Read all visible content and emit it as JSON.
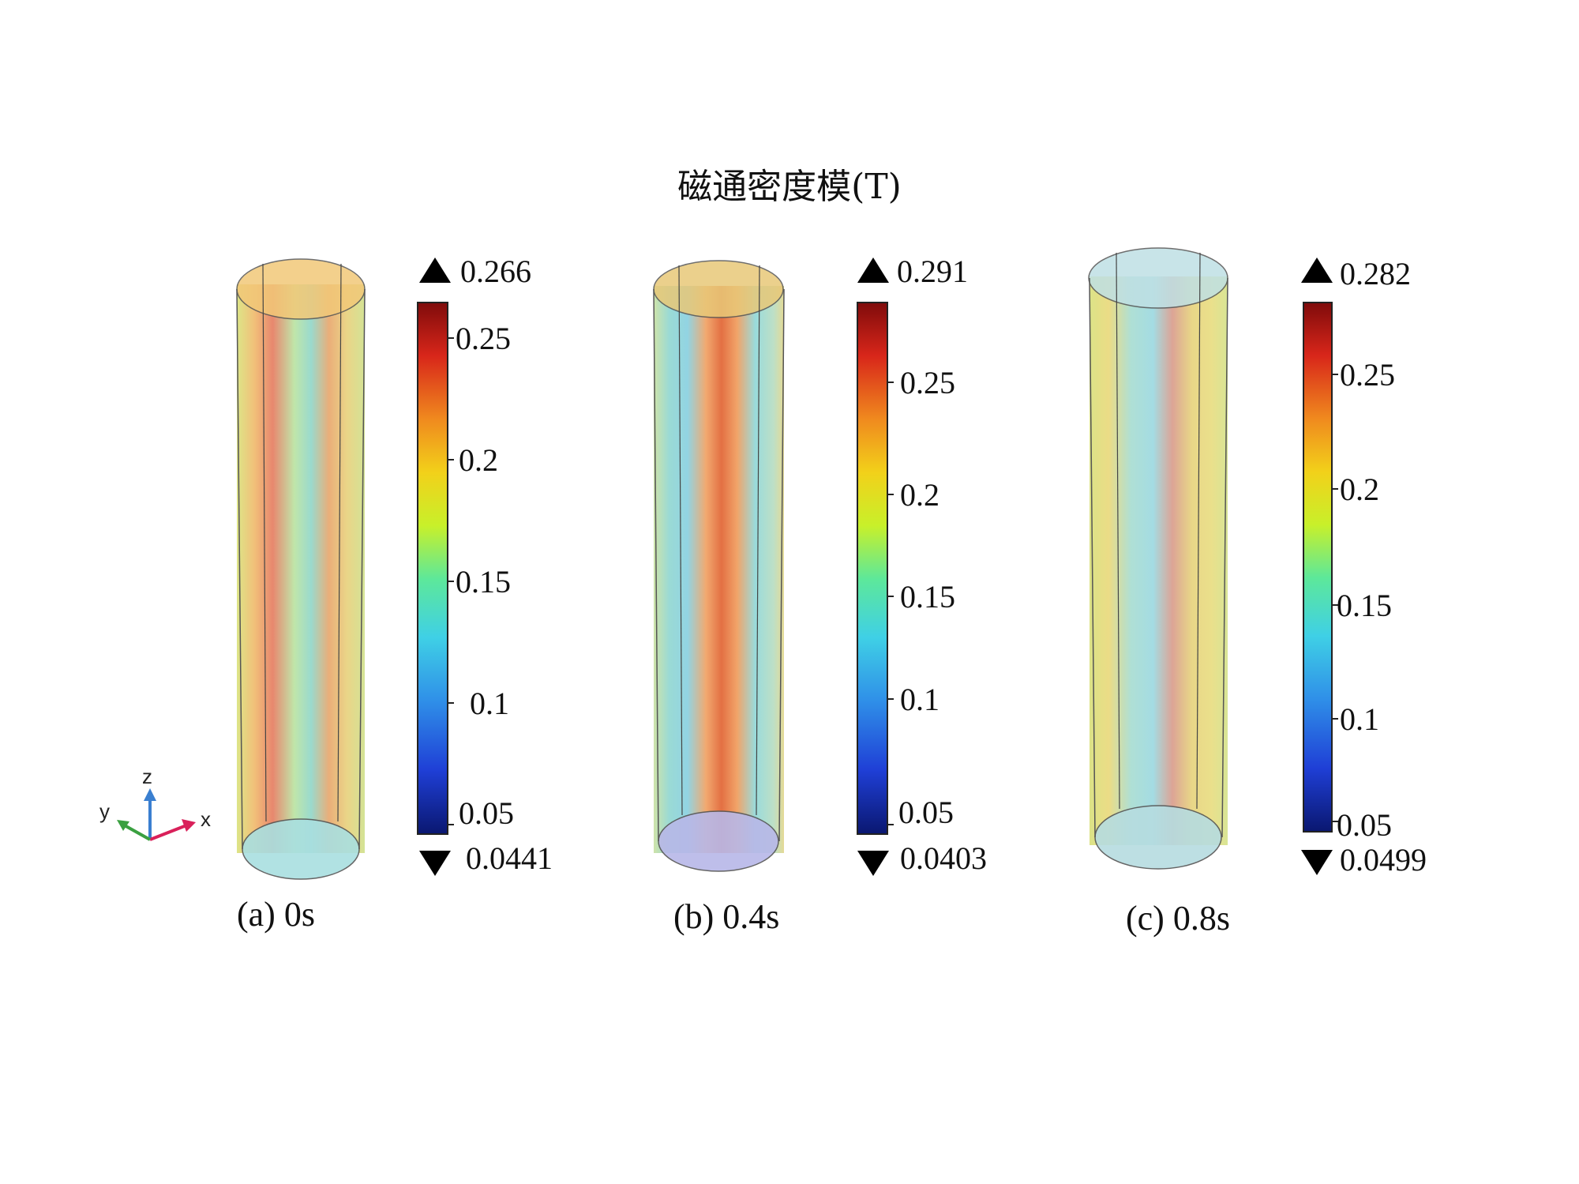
{
  "title": "磁通密度模(T)",
  "colormap": [
    "#0a1770",
    "#1f3fd6",
    "#2f8fe8",
    "#3fd0e6",
    "#5de89a",
    "#c8f02a",
    "#f2d11a",
    "#f08a1e",
    "#d8261a",
    "#7f0b0b"
  ],
  "panels": [
    {
      "caption": "(a) 0s",
      "max_label": "0.266",
      "min_label": "0.0441",
      "ticks": [
        "0.25",
        "0.2",
        "0.15",
        "0.1",
        "0.05"
      ]
    },
    {
      "caption": "(b) 0.4s",
      "max_label": "0.291",
      "min_label": "0.0403",
      "ticks": [
        "0.25",
        "0.2",
        "0.15",
        "0.1",
        "0.05"
      ]
    },
    {
      "caption": "(c) 0.8s",
      "max_label": "0.282",
      "min_label": "0.0499",
      "ticks": [
        "0.25",
        "0.2",
        "0.15",
        "0.1",
        "0.05"
      ]
    }
  ],
  "axes_triad": {
    "x": "x",
    "y": "y",
    "z": "z"
  }
}
